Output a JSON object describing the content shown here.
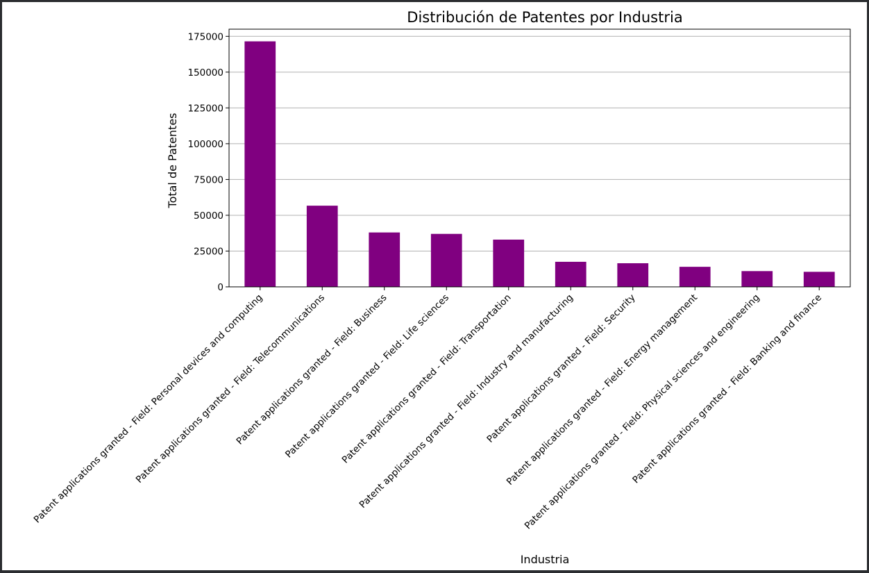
{
  "colors": {
    "bar": "#800080",
    "grid": "#b0b0b0",
    "axis": "#000000",
    "background": "#ffffff",
    "frame": "#2b2d30"
  },
  "chart_data": {
    "type": "bar",
    "title": "Distribución de Patentes por Industria",
    "xlabel": "Industria",
    "ylabel": "Total de Patentes",
    "ylim": [
      0,
      180000
    ],
    "yticks": [
      0,
      25000,
      50000,
      75000,
      100000,
      125000,
      150000,
      175000
    ],
    "grid": "y-axis",
    "categories": [
      "Patent applications granted - Field: Personal devices and computing",
      "Patent applications granted - Field: Telecommunications",
      "Patent applications granted - Field: Business",
      "Patent applications granted - Field: Life sciences",
      "Patent applications granted - Field: Transportation",
      "Patent applications granted - Field: Industry and manufacturing",
      "Patent applications granted - Field: Security",
      "Patent applications granted - Field: Energy management",
      "Patent applications granted - Field: Physical sciences and engineering",
      "Patent applications granted - Field: Banking and finance"
    ],
    "values": [
      171500,
      56700,
      38000,
      37000,
      33000,
      17500,
      16500,
      14000,
      11000,
      10500
    ]
  }
}
